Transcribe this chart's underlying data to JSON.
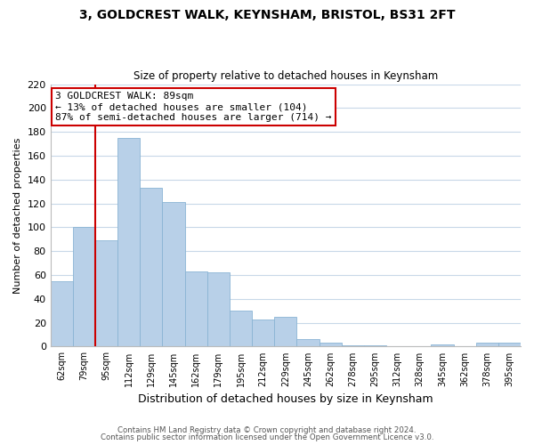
{
  "title": "3, GOLDCREST WALK, KEYNSHAM, BRISTOL, BS31 2FT",
  "subtitle": "Size of property relative to detached houses in Keynsham",
  "xlabel": "Distribution of detached houses by size in Keynsham",
  "ylabel": "Number of detached properties",
  "bar_color": "#b8d0e8",
  "bar_edge_color": "#8ab4d4",
  "categories": [
    "62sqm",
    "79sqm",
    "95sqm",
    "112sqm",
    "129sqm",
    "145sqm",
    "162sqm",
    "179sqm",
    "195sqm",
    "212sqm",
    "229sqm",
    "245sqm",
    "262sqm",
    "278sqm",
    "295sqm",
    "312sqm",
    "328sqm",
    "345sqm",
    "362sqm",
    "378sqm",
    "395sqm"
  ],
  "values": [
    55,
    100,
    89,
    175,
    133,
    121,
    63,
    62,
    30,
    23,
    25,
    6,
    3,
    1,
    1,
    0,
    0,
    2,
    0,
    3,
    3
  ],
  "ylim": [
    0,
    220
  ],
  "yticks": [
    0,
    20,
    40,
    60,
    80,
    100,
    120,
    140,
    160,
    180,
    200,
    220
  ],
  "vline_color": "#cc0000",
  "annotation_text": "3 GOLDCREST WALK: 89sqm\n← 13% of detached houses are smaller (104)\n87% of semi-detached houses are larger (714) →",
  "annotation_box_color": "#ffffff",
  "annotation_box_edge": "#cc0000",
  "footnote1": "Contains HM Land Registry data © Crown copyright and database right 2024.",
  "footnote2": "Contains public sector information licensed under the Open Government Licence v3.0.",
  "background_color": "#ffffff",
  "grid_color": "#c8d8e8"
}
